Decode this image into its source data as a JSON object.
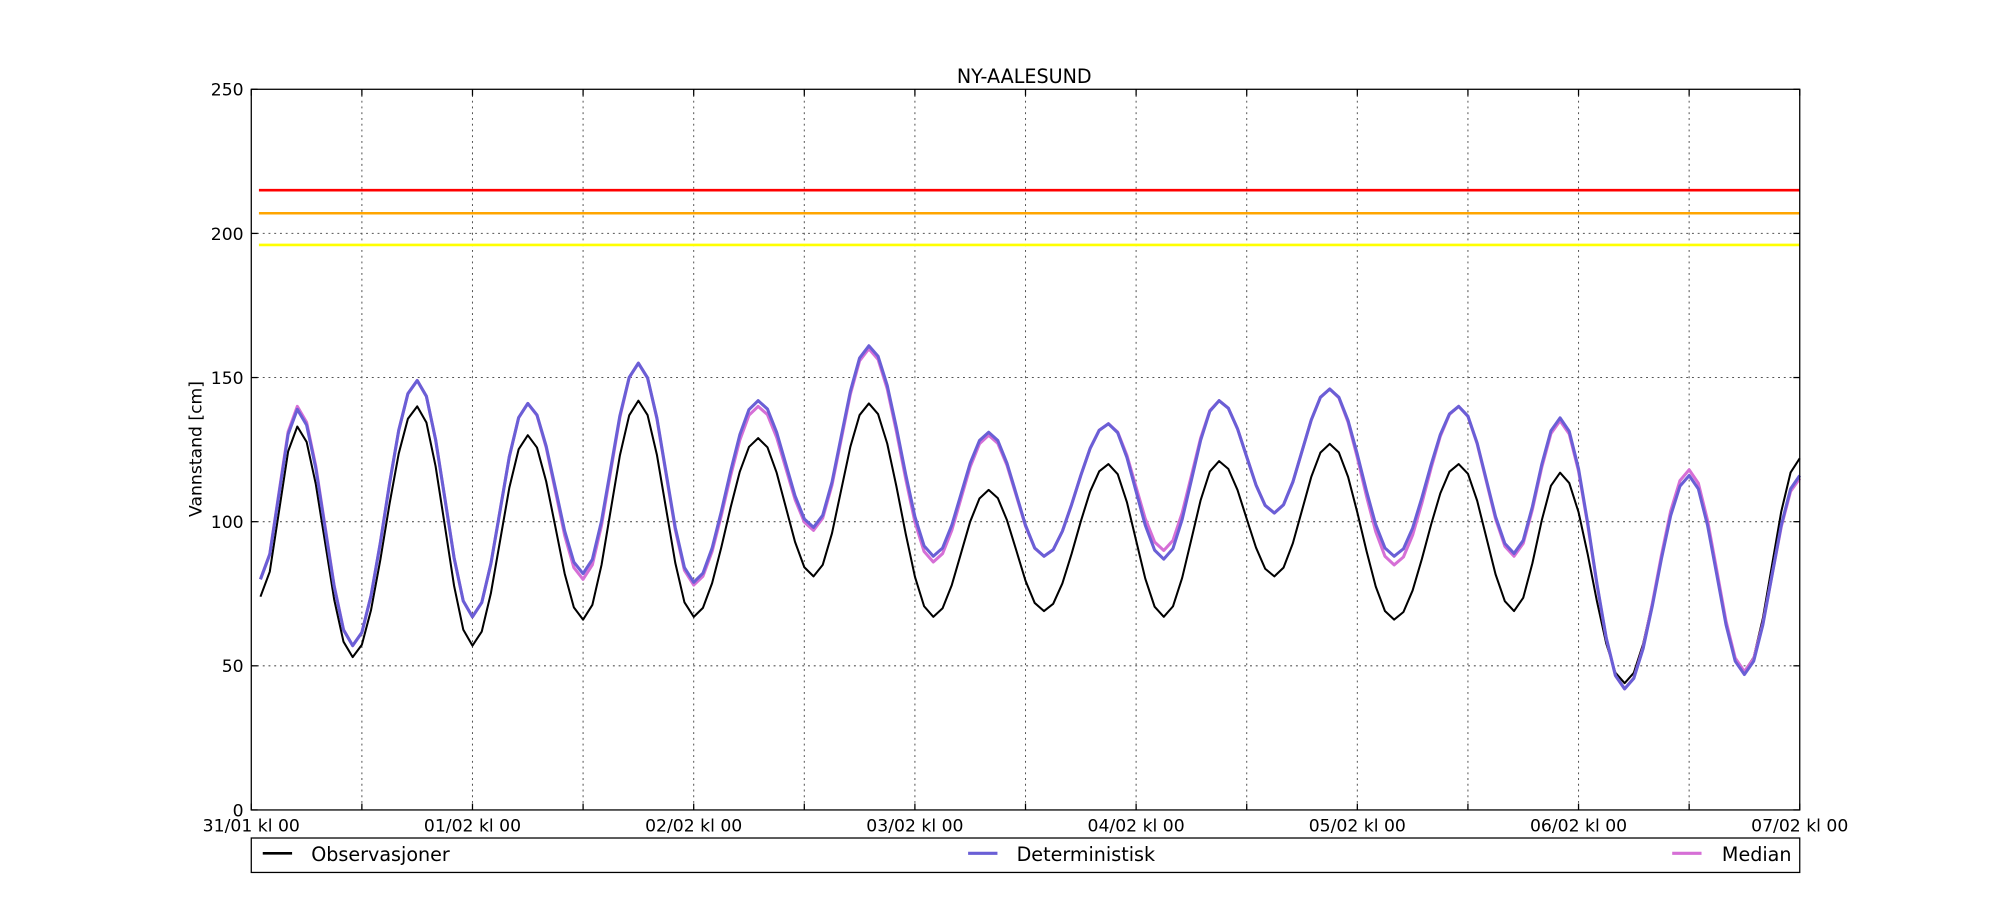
{
  "chart_data": {
    "type": "line",
    "title": "NY-AALESUND",
    "xlabel": "",
    "ylabel": "Vannstand [cm]",
    "ylim": [
      0,
      250
    ],
    "yticks": [
      0,
      50,
      100,
      150,
      200,
      250
    ],
    "xlim": [
      "31/01 00:00",
      "07/02 00:00"
    ],
    "xtick_labels": [
      "31/01 kl 00",
      "01/02 kl 00",
      "02/02 kl 00",
      "03/02 kl 00",
      "04/02 kl 00",
      "05/02 kl 00",
      "06/02 kl 00",
      "07/02 kl 00"
    ],
    "grid": true,
    "legend_placement": "below",
    "thresholds": [
      {
        "value": 215,
        "color": "#ff0000"
      },
      {
        "value": 207,
        "color": "#ffa500"
      },
      {
        "value": 196,
        "color": "#ffff00"
      }
    ],
    "x": [
      "31/01 01:00",
      "31/01 05:00",
      "31/01 11:00",
      "31/01 18:00",
      "01/02 00:00",
      "01/02 06:00",
      "01/02 12:00",
      "01/02 18:00",
      "02/02 00:00",
      "02/02 07:00",
      "02/02 13:00",
      "02/02 19:00",
      "03/02 02:00",
      "03/02 08:00",
      "03/02 14:00",
      "03/02 21:00",
      "04/02 03:00",
      "04/02 09:00",
      "04/02 15:00",
      "04/02 21:00",
      "05/02 04:00",
      "05/02 11:00",
      "05/02 17:00",
      "05/02 22:00",
      "06/02 05:00",
      "06/02 12:00",
      "06/02 18:00",
      "07/02 00:00"
    ],
    "series": [
      {
        "name": "Observasjoner",
        "color": "#000000",
        "values": [
          74,
          133,
          53,
          140,
          57,
          130,
          66,
          142,
          67,
          129,
          81,
          141,
          67,
          111,
          69,
          120,
          67,
          121,
          81,
          127,
          66,
          120,
          69,
          117,
          44,
          116,
          48,
          122
        ]
      },
      {
        "name": "Deterministisk",
        "color": "#6a5fd6",
        "values": [
          80,
          139,
          57,
          149,
          67,
          141,
          82,
          155,
          79,
          142,
          98,
          161,
          88,
          131,
          88,
          134,
          87,
          142,
          103,
          146,
          88,
          140,
          89,
          136,
          42,
          116,
          47,
          116
        ]
      },
      {
        "name": "Median",
        "color": "#d66fd6",
        "values": [
          80,
          140,
          57,
          149,
          67,
          141,
          80,
          155,
          78,
          140,
          97,
          160,
          86,
          130,
          88,
          134,
          90,
          142,
          103,
          146,
          85,
          140,
          88,
          135,
          42,
          118,
          48,
          115
        ]
      }
    ]
  }
}
